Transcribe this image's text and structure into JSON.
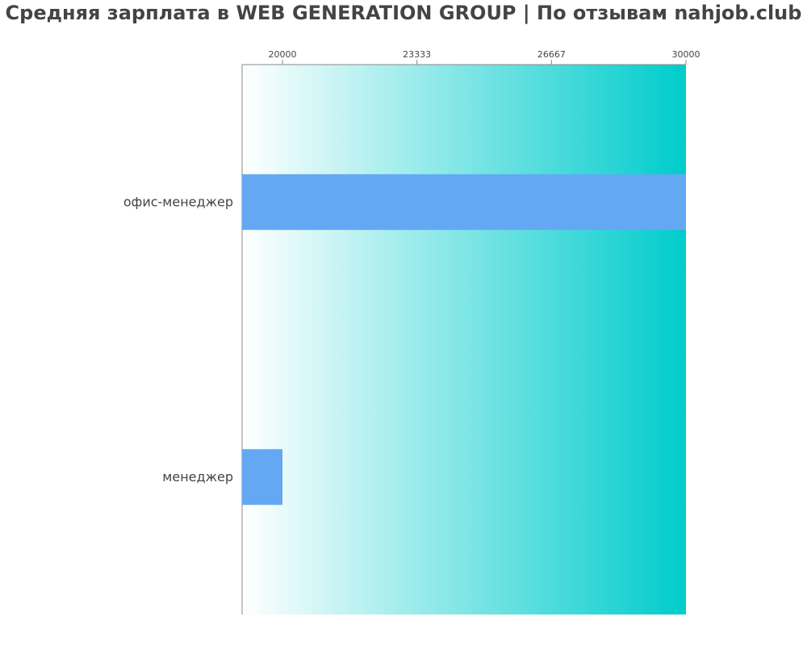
{
  "chart_data": {
    "type": "bar",
    "orientation": "horizontal",
    "title": "Средняя зарплата в WEB GENERATION GROUP | По отзывам nahjob.club",
    "categories": [
      "офис-менеджер",
      "менеджер"
    ],
    "values": [
      30000,
      20000
    ],
    "xlim": [
      19000,
      30000
    ],
    "ticks": [
      "20000",
      "23333",
      "26667",
      "30000"
    ],
    "tick_values": [
      20000,
      23333,
      26667,
      30000
    ],
    "xaxis_position": "top",
    "grid": false,
    "bar_color": "#64a8f4",
    "background_gradient": [
      "#ffffff",
      "#00cccc"
    ]
  }
}
